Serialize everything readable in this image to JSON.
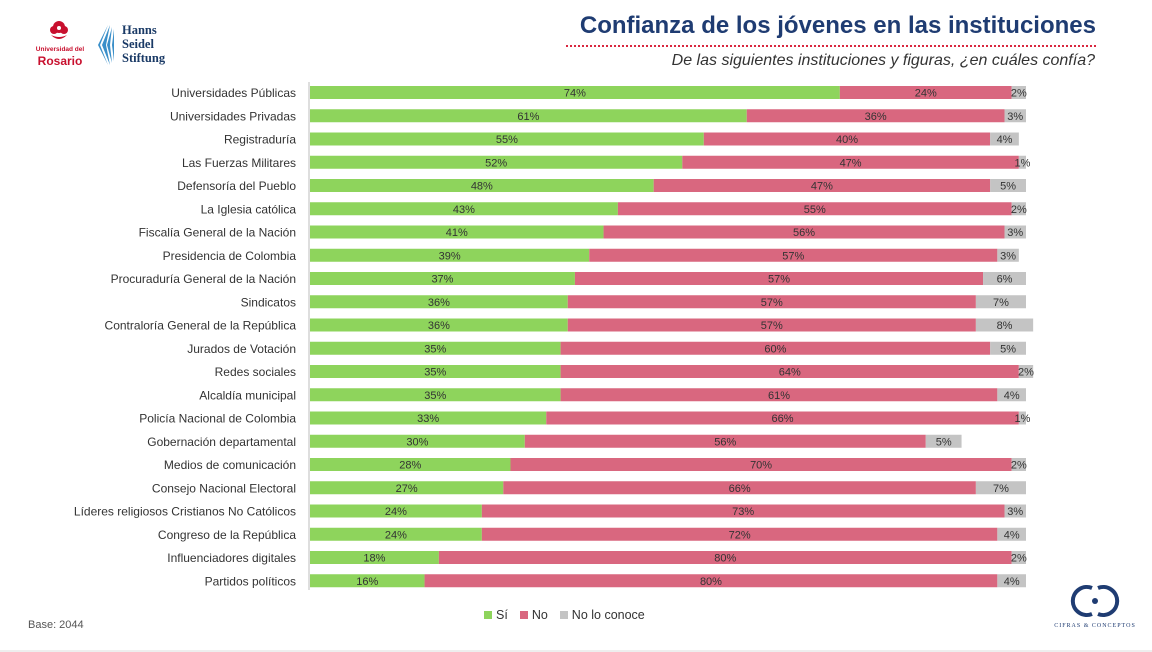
{
  "header": {
    "title": "Confianza de los jóvenes en las instituciones",
    "subtitle": "De las siguientes instituciones y figuras, ¿en cuáles confía?"
  },
  "logos": {
    "rosario_line1": "Universidad del",
    "rosario_line2": "Rosario",
    "hss_line1": "Hanns",
    "hss_line2": "Seidel",
    "hss_line3": "Stiftung",
    "cc_name": "CIFRAS & CONCEPTOS"
  },
  "footer": {
    "base": "Base: 2044"
  },
  "colors": {
    "si": "#8ed45c",
    "no": "#d9677f",
    "no_conoce": "#c4c4c4",
    "title": "#1f3c72",
    "accent": "#d9273f"
  },
  "legend": [
    {
      "label": "Sí",
      "color": "#8ed45c"
    },
    {
      "label": "No",
      "color": "#d9677f"
    },
    {
      "label": "No lo conoce",
      "color": "#c4c4c4"
    }
  ],
  "chart_data": {
    "type": "bar",
    "orientation": "horizontal",
    "stacked": true,
    "unit": "%",
    "categories": [
      "Universidades Públicas",
      "Universidades Privadas",
      "Registraduría",
      "Las Fuerzas Militares",
      "Defensoría del Pueblo",
      "La Iglesia católica",
      "Fiscalía General de la Nación",
      "Presidencia de Colombia",
      "Procuraduría General de la Nación",
      "Sindicatos",
      "Contraloría General de la República",
      "Jurados de Votación",
      "Redes sociales",
      "Alcaldía municipal",
      "Policía Nacional de Colombia",
      "Gobernación departamental",
      "Medios de comunicación",
      "Consejo Nacional Electoral",
      "Líderes religiosos Cristianos No Católicos",
      "Congreso de la República",
      "Influenciadores digitales",
      "Partidos políticos"
    ],
    "series": [
      {
        "name": "Sí",
        "values": [
          74,
          61,
          55,
          52,
          48,
          43,
          41,
          39,
          37,
          36,
          36,
          35,
          35,
          35,
          33,
          30,
          28,
          27,
          24,
          24,
          18,
          16
        ]
      },
      {
        "name": "No",
        "values": [
          24,
          36,
          40,
          47,
          47,
          55,
          56,
          57,
          57,
          57,
          57,
          60,
          64,
          61,
          66,
          56,
          70,
          66,
          73,
          72,
          80,
          80
        ]
      },
      {
        "name": "No lo conoce",
        "values": [
          2,
          3,
          4,
          1,
          5,
          2,
          3,
          3,
          6,
          7,
          8,
          5,
          2,
          4,
          1,
          5,
          2,
          7,
          3,
          4,
          2,
          4
        ]
      }
    ],
    "legend_position": "bottom"
  }
}
